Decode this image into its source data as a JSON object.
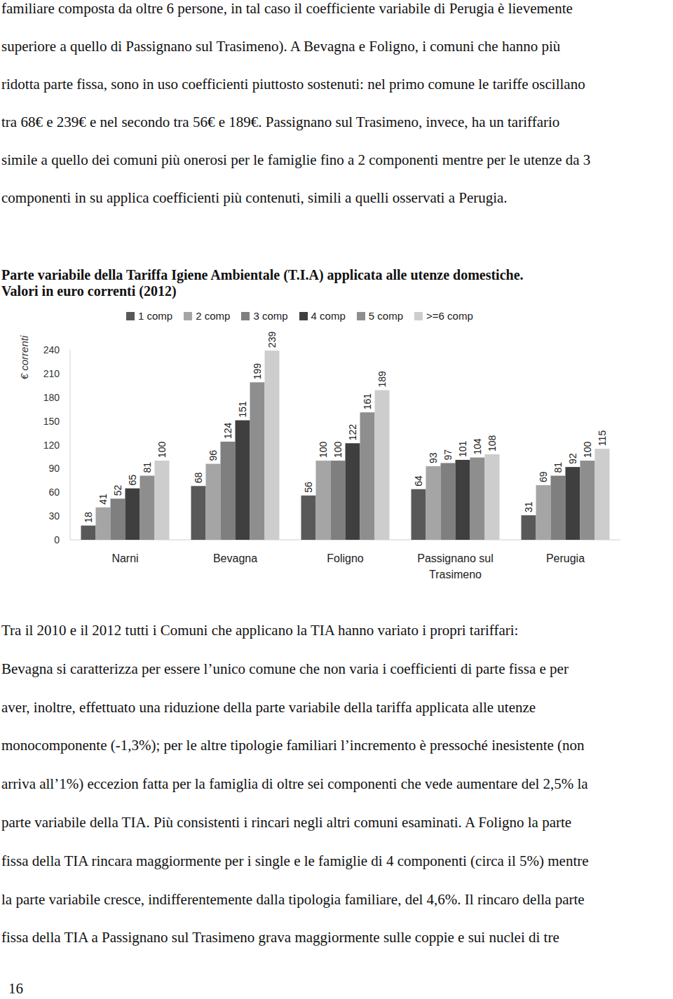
{
  "page": {
    "text_top": [
      [
        "familiare composta da oltre 6 persone, in tal caso il coefficiente variabile di Perugia è lievemente",
        "superiore a quello di Passignano sul Trasimeno). A Bevagna e Foligno, i comuni che hanno più",
        "ridotta parte fissa, sono in uso coefficienti piuttosto sostenuti: nel primo comune le tariffe oscillano",
        "tra 68€ e 239€ e nel secondo tra 56€ e 189€. Passignano sul Trasimeno, invece, ha un tariffario",
        "simile a quello dei comuni più onerosi per le famiglie fino a 2 componenti mentre per le utenze da 3",
        "componenti in su applica coefficienti più contenuti, simili a quelli osservati a Perugia."
      ]
    ],
    "text_bottom": [
      [
        "Tra il 2010 e il 2012 tutti i Comuni che applicano la TIA hanno variato i propri tariffari:"
      ],
      [
        "Bevagna si caratterizza per essere l’unico comune che non varia i coefficienti di parte fissa e per",
        "aver, inoltre, effettuato una riduzione della parte variabile della tariffa applicata alle utenze",
        "monocomponente (-1,3%); per le altre tipologie familiari l’incremento è pressoché inesistente (non",
        "arriva all’1%) eccezion fatta per la famiglia di oltre sei componenti che vede aumentare del 2,5% la",
        "parte variabile della TIA. Più consistenti i rincari negli altri comuni esaminati. A Foligno la parte",
        "fissa della TIA rincara maggiormente per i single e le famiglie di 4 componenti (circa il 5%) mentre",
        "la parte variabile cresce, indifferentemente dalla tipologia familiare, del 4,6%. Il rincaro della parte",
        "fissa della TIA a Passignano sul Trasimeno grava maggiormente sulle coppie e sui nuclei di tre"
      ]
    ],
    "page_number": "16"
  },
  "chart_data": {
    "type": "bar",
    "title": "Parte variabile della Tariffa Igiene Ambientale (T.I.A) applicata alle utenze domestiche.",
    "subtitle": "Valori in euro correnti (2012)",
    "y_label": "€ correnti",
    "categories": [
      "Narni",
      "Bevagna",
      "Foligno",
      "Passignano sul Trasimeno",
      "Perugia"
    ],
    "series": [
      {
        "name": "1 comp",
        "color": "#595959",
        "values": [
          18,
          68,
          56,
          64,
          31
        ]
      },
      {
        "name": "2 comp",
        "color": "#a5a5a5",
        "values": [
          41,
          96,
          100,
          93,
          69
        ]
      },
      {
        "name": "3 comp",
        "color": "#7f7f7f",
        "values": [
          52,
          124,
          100,
          97,
          81
        ]
      },
      {
        "name": "4 comp",
        "color": "#3f3f3f",
        "values": [
          65,
          151,
          122,
          101,
          92
        ]
      },
      {
        "name": "5 comp",
        "color": "#8e8e8e",
        "values": [
          81,
          199,
          161,
          104,
          100
        ]
      },
      {
        "name": ">=6 comp",
        "color": "#cdcdcd",
        "values": [
          100,
          239,
          189,
          108,
          115
        ]
      }
    ],
    "ylim": [
      0,
      240
    ],
    "yticks": [
      0,
      30,
      60,
      90,
      120,
      150,
      180,
      210,
      240
    ],
    "grid": false,
    "legend": "top",
    "data_labels": true
  }
}
